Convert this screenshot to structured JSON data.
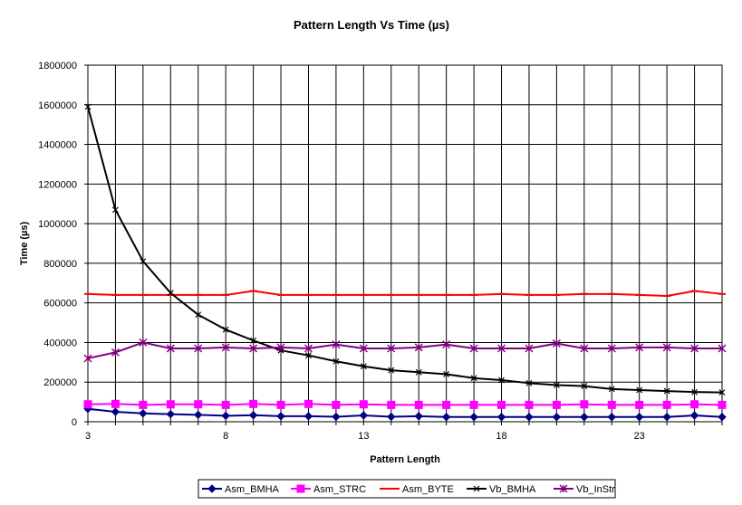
{
  "chart_data": {
    "type": "line",
    "title": "Pattern Length Vs Time (µs)",
    "xlabel": "Pattern Length",
    "ylabel": "Time (µs)",
    "x": [
      3,
      4,
      5,
      6,
      7,
      8,
      9,
      10,
      11,
      12,
      13,
      14,
      15,
      16,
      17,
      18,
      19,
      20,
      21,
      22,
      23,
      24,
      25,
      26
    ],
    "x_tick_labels": [
      "3",
      "8",
      "13",
      "18",
      "23"
    ],
    "x_tick_values": [
      3,
      8,
      13,
      18,
      23
    ],
    "ylim": [
      0,
      1800000
    ],
    "y_ticks": [
      0,
      200000,
      400000,
      600000,
      800000,
      1000000,
      1200000,
      1400000,
      1600000,
      1800000
    ],
    "y_tick_labels": [
      "0",
      "200000",
      "400000",
      "600000",
      "800000",
      "1000000",
      "1200000",
      "1400000",
      "1600000",
      "1800000"
    ],
    "grid": true,
    "legend_position": "bottom",
    "series": [
      {
        "name": "Asm_BMHA",
        "color": "#000080",
        "marker": "diamond",
        "values": [
          65000,
          50000,
          42000,
          38000,
          35000,
          30000,
          33000,
          28000,
          28000,
          25000,
          32000,
          25000,
          28000,
          24000,
          24000,
          24000,
          24000,
          24000,
          24000,
          24000,
          24000,
          24000,
          32000,
          24000
        ]
      },
      {
        "name": "Asm_STRC",
        "color": "#ff00ff",
        "marker": "square",
        "values": [
          88000,
          90000,
          85000,
          88000,
          88000,
          85000,
          90000,
          85000,
          90000,
          85000,
          88000,
          85000,
          85000,
          85000,
          85000,
          85000,
          85000,
          85000,
          88000,
          85000,
          85000,
          85000,
          88000,
          85000
        ]
      },
      {
        "name": "Asm_BYTE",
        "color": "#ff0000",
        "marker": "dash",
        "values": [
          645000,
          640000,
          640000,
          640000,
          640000,
          640000,
          660000,
          640000,
          640000,
          640000,
          640000,
          640000,
          640000,
          640000,
          640000,
          645000,
          640000,
          640000,
          645000,
          645000,
          640000,
          635000,
          660000,
          645000
        ]
      },
      {
        "name": "Vb_BMHA",
        "color": "#000000",
        "marker": "x",
        "values": [
          1590000,
          1070000,
          810000,
          650000,
          540000,
          465000,
          410000,
          360000,
          335000,
          305000,
          280000,
          260000,
          250000,
          240000,
          220000,
          210000,
          195000,
          185000,
          180000,
          165000,
          160000,
          155000,
          150000,
          148000
        ]
      },
      {
        "name": "Vb_InStr",
        "color": "#800080",
        "marker": "star",
        "values": [
          320000,
          350000,
          400000,
          370000,
          370000,
          375000,
          370000,
          375000,
          370000,
          390000,
          370000,
          370000,
          375000,
          390000,
          370000,
          370000,
          370000,
          395000,
          370000,
          370000,
          375000,
          375000,
          370000,
          370000
        ]
      }
    ]
  }
}
